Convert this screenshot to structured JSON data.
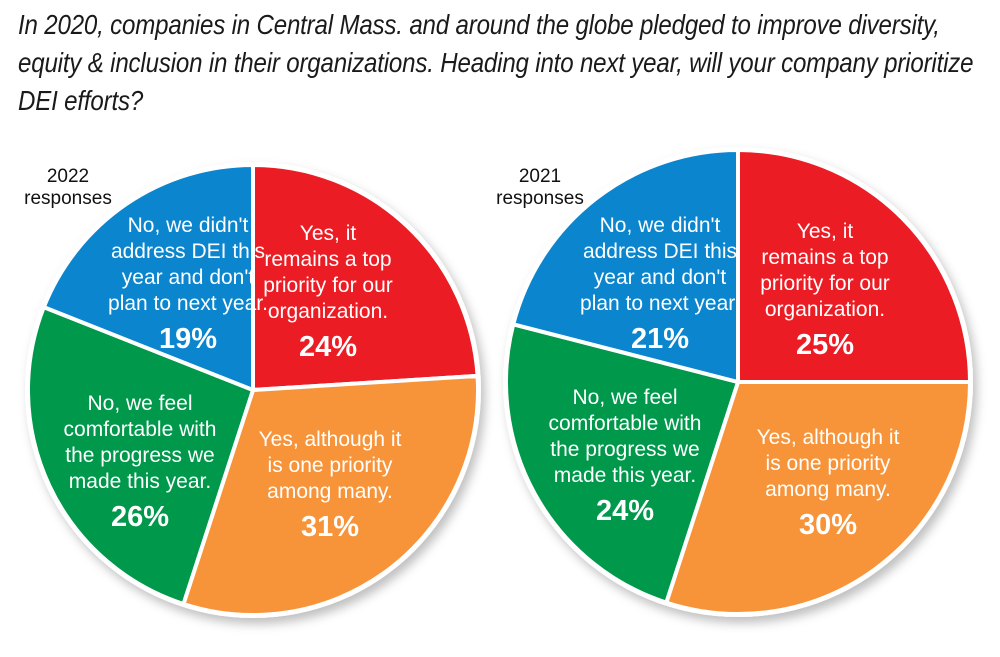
{
  "title": "In 2020, companies in Central Mass. and around the globe pledged to improve diversity, equity & inclusion in their organizations. Heading into next year, will your company prioritize DEI efforts?",
  "chart_data": [
    {
      "type": "pie",
      "title": "2022 responses",
      "title_lines": [
        "2022",
        "responses"
      ],
      "slices": [
        {
          "label": "Yes, it remains a top priority for our organization.",
          "label_lines": [
            "Yes, it",
            "remains a top",
            "priority for our",
            "organization."
          ],
          "value": 24,
          "display": "24%",
          "color": "#ec1c24"
        },
        {
          "label": "Yes, although it is one priority among many.",
          "label_lines": [
            "Yes, although it",
            "is one priority",
            "among many."
          ],
          "value": 31,
          "display": "31%",
          "color": "#f7943a"
        },
        {
          "label": "No, we feel comfortable with the progress we made this year.",
          "label_lines": [
            "No, we feel",
            "comfortable with",
            "the progress we",
            "made this year."
          ],
          "value": 26,
          "display": "26%",
          "color": "#00984a"
        },
        {
          "label": "No, we didn't address DEI this year and don't plan to next year.",
          "label_lines": [
            "No, we didn't",
            "address DEI this",
            "year and don't",
            "plan to next year."
          ],
          "value": 19,
          "display": "19%",
          "color": "#0a85ce"
        }
      ]
    },
    {
      "type": "pie",
      "title": "2021 responses",
      "title_lines": [
        "2021",
        "responses"
      ],
      "slices": [
        {
          "label": "Yes, it remains a top priority for our organization.",
          "label_lines": [
            "Yes, it",
            "remains a top",
            "priority for our",
            "organization."
          ],
          "value": 25,
          "display": "25%",
          "color": "#ec1c24"
        },
        {
          "label": "Yes, although it is one priority among many.",
          "label_lines": [
            "Yes, although it",
            "is one priority",
            "among many."
          ],
          "value": 30,
          "display": "30%",
          "color": "#f7943a"
        },
        {
          "label": "No, we feel comfortable with the progress we made this year.",
          "label_lines": [
            "No, we feel",
            "comfortable with",
            "the progress we",
            "made this year."
          ],
          "value": 24,
          "display": "24%",
          "color": "#00984a"
        },
        {
          "label": "No, we didn't address DEI this year and don't plan to next year.",
          "label_lines": [
            "No, we didn't",
            "address DEI this",
            "year and don't",
            "plan to next year."
          ],
          "value": 21,
          "display": "21%",
          "color": "#0a85ce"
        }
      ]
    }
  ]
}
